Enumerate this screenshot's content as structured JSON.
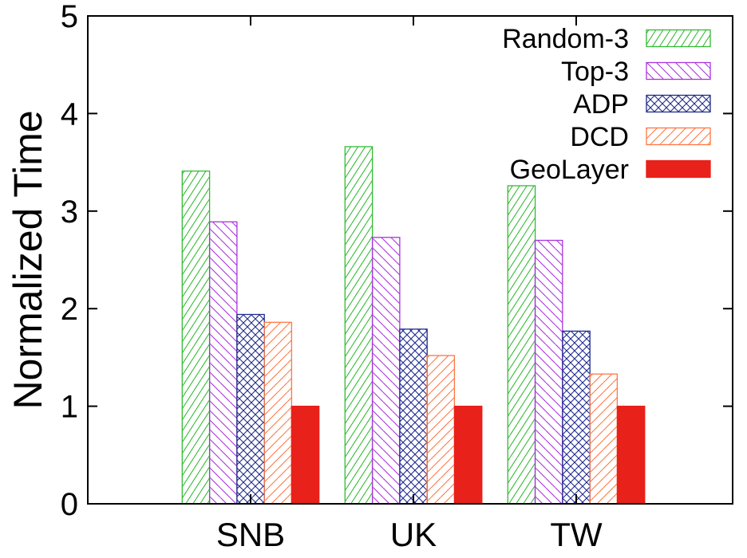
{
  "chart_data": {
    "type": "bar",
    "title": "",
    "xlabel": "",
    "ylabel": "Normalized Time",
    "ylim": [
      0,
      5
    ],
    "yticks": [
      0,
      1,
      2,
      3,
      4,
      5
    ],
    "grid": false,
    "legend_position": "top-right",
    "categories": [
      "SNB",
      "UK",
      "TW"
    ],
    "series": [
      {
        "name": "Random-3",
        "values": [
          3.41,
          3.66,
          3.26
        ],
        "color": "#33bb33",
        "pattern": "diagonal-steep"
      },
      {
        "name": "Top-3",
        "values": [
          2.89,
          2.73,
          2.7
        ],
        "color": "#aa33dd",
        "pattern": "diagonal-back"
      },
      {
        "name": "ADP",
        "values": [
          1.94,
          1.79,
          1.77
        ],
        "color": "#1f2a8c",
        "pattern": "crosshatch"
      },
      {
        "name": "DCD",
        "values": [
          1.86,
          1.52,
          1.33
        ],
        "color": "#ff7744",
        "pattern": "diagonal"
      },
      {
        "name": "GeoLayer",
        "values": [
          1.0,
          1.0,
          1.0
        ],
        "color": "#e8211a",
        "pattern": "solid"
      }
    ]
  }
}
